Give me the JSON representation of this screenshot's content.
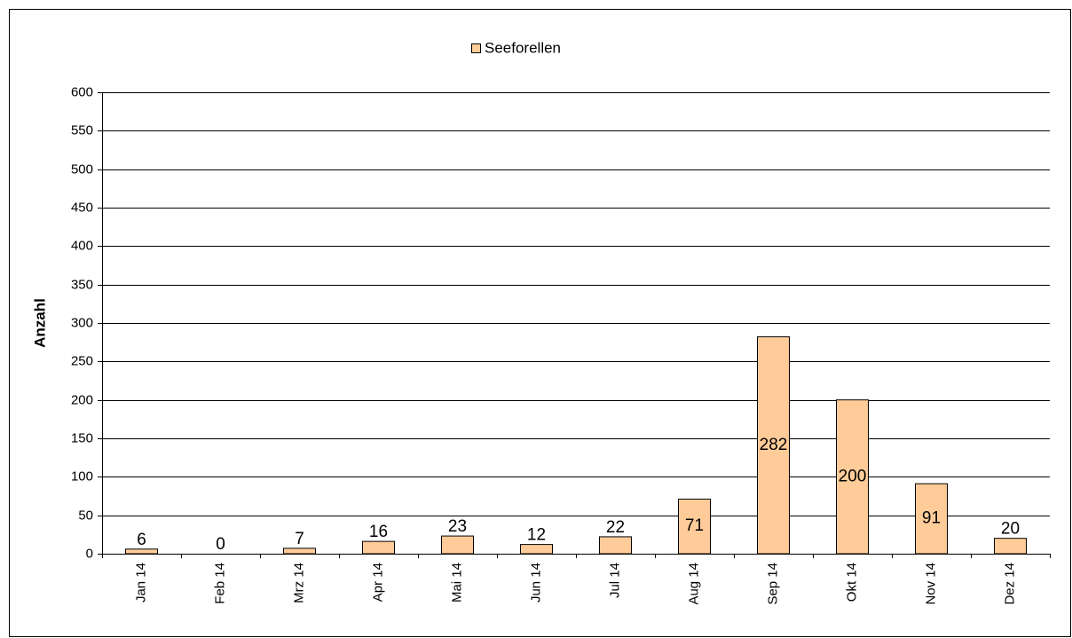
{
  "chart_data": {
    "type": "bar",
    "legend": "Seeforellen",
    "y_label": "Anzahl",
    "categories": [
      "Jan 14",
      "Feb 14",
      "Mrz 14",
      "Apr 14",
      "Mai 14",
      "Jun 14",
      "Jul 14",
      "Aug 14",
      "Sep 14",
      "Okt 14",
      "Nov 14",
      "Dez 14"
    ],
    "values": [
      6,
      0,
      7,
      16,
      23,
      12,
      22,
      71,
      282,
      200,
      91,
      20
    ],
    "color": "#ffcc99",
    "ylim": [
      0,
      600
    ],
    "yticks": [
      0,
      50,
      100,
      150,
      200,
      250,
      300,
      350,
      400,
      450,
      500,
      550,
      600
    ],
    "grid": true
  }
}
